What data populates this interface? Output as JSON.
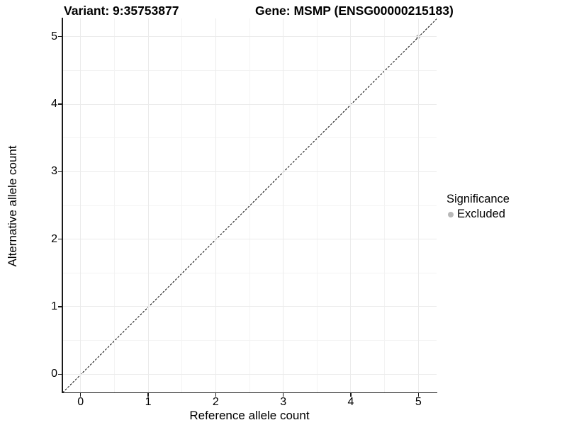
{
  "titles": {
    "variant": "Variant: 9:35753877",
    "gene": "Gene: MSMP (ENSG00000215183)"
  },
  "axes": {
    "x_title": "Reference allele count",
    "y_title": "Alternative allele count"
  },
  "legend": {
    "title": "Significance",
    "items": [
      {
        "label": "Excluded",
        "color": "#b8b8b8"
      }
    ]
  },
  "colors": {
    "axis_line": "#1a1a1a",
    "grid_major": "#ebebeb",
    "grid_minor": "#f3f3f3",
    "reference_line": "#000000",
    "point_excluded": "#b8b8b8",
    "background": "#ffffff",
    "text": "#000000"
  },
  "chart_data": {
    "type": "scatter",
    "title_left": "Variant: 9:35753877",
    "title_right": "Gene: MSMP (ENSG00000215183)",
    "xlabel": "Reference allele count",
    "ylabel": "Alternative allele count",
    "xlim": [
      -0.27,
      5.27
    ],
    "ylim": [
      -0.27,
      5.27
    ],
    "x_ticks": [
      0,
      1,
      2,
      3,
      4,
      5
    ],
    "y_ticks": [
      0,
      1,
      2,
      3,
      4,
      5
    ],
    "x_minor_ticks": [
      0.5,
      1.5,
      2.5,
      3.5,
      4.5
    ],
    "y_minor_ticks": [
      0.5,
      1.5,
      2.5,
      3.5,
      4.5
    ],
    "grid": "major+minor",
    "legend_position": "right",
    "series": [
      {
        "name": "Excluded",
        "color": "#b8b8b8",
        "points": [
          {
            "x": 5,
            "y": 5
          }
        ]
      }
    ],
    "reference_line": {
      "slope": 1,
      "intercept": 0,
      "style": "dashed",
      "color": "#000000"
    }
  }
}
